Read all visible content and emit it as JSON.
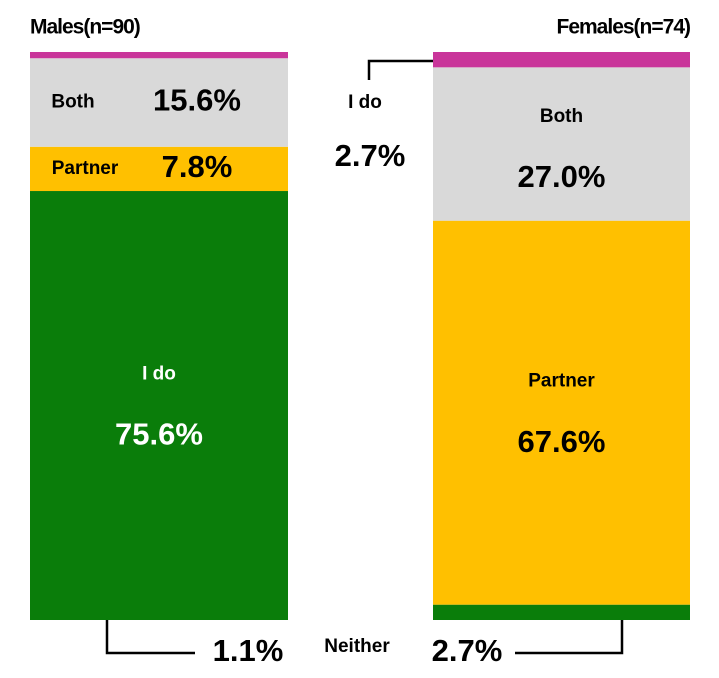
{
  "chart_data": {
    "type": "stacked_bar",
    "categories": [
      "Males(n=90)",
      "Females(n=74)"
    ],
    "series": [
      {
        "name": "I do",
        "color": "#0a7d0a",
        "values": [
          75.6,
          2.7
        ],
        "value_labels": [
          "75.6%",
          "2.7%"
        ]
      },
      {
        "name": "Partner",
        "color": "#ffc000",
        "values": [
          7.8,
          67.6
        ],
        "value_labels": [
          "7.8%",
          "67.6%"
        ]
      },
      {
        "name": "Both",
        "color": "#d9d9d9",
        "values": [
          15.6,
          27.0
        ],
        "value_labels": [
          "15.6%",
          "27.0%"
        ]
      },
      {
        "name": "Neither",
        "color": "#c9359a",
        "values": [
          1.1,
          2.7
        ],
        "value_labels": [
          "1.1%",
          "2.7%"
        ]
      }
    ]
  }
}
